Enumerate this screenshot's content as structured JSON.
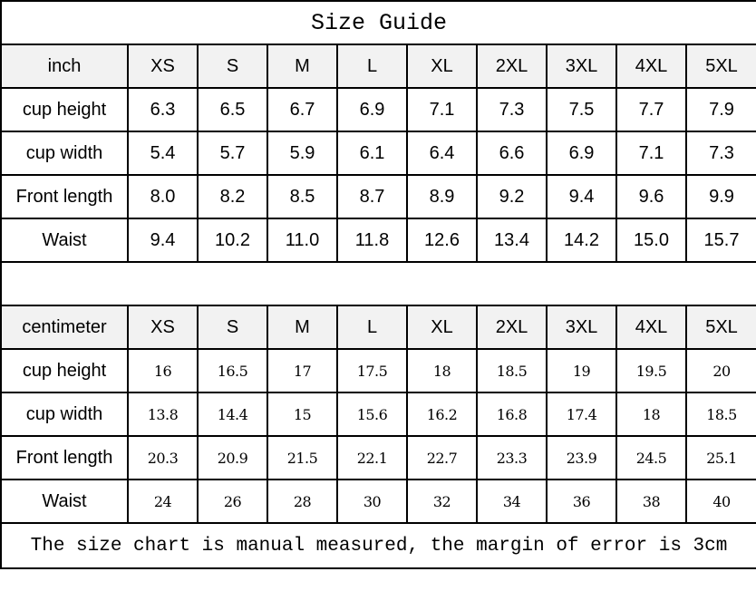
{
  "title": "Size Guide",
  "sizes": [
    "XS",
    "S",
    "M",
    "L",
    "XL",
    "2XL",
    "3XL",
    "4XL",
    "5XL"
  ],
  "inch": {
    "unit_label": "inch",
    "rows": [
      {
        "label": "cup height",
        "values": [
          "6.3",
          "6.5",
          "6.7",
          "6.9",
          "7.1",
          "7.3",
          "7.5",
          "7.7",
          "7.9"
        ]
      },
      {
        "label": "cup width",
        "values": [
          "5.4",
          "5.7",
          "5.9",
          "6.1",
          "6.4",
          "6.6",
          "6.9",
          "7.1",
          "7.3"
        ]
      },
      {
        "label": "Front length",
        "values": [
          "8.0",
          "8.2",
          "8.5",
          "8.7",
          "8.9",
          "9.2",
          "9.4",
          "9.6",
          "9.9"
        ]
      },
      {
        "label": "Waist",
        "values": [
          "9.4",
          "10.2",
          "11.0",
          "11.8",
          "12.6",
          "13.4",
          "14.2",
          "15.0",
          "15.7"
        ]
      }
    ]
  },
  "centimeter": {
    "unit_label": "centimeter",
    "rows": [
      {
        "label": "cup height",
        "values": [
          "16",
          "16.5",
          "17",
          "17.5",
          "18",
          "18.5",
          "19",
          "19.5",
          "20"
        ]
      },
      {
        "label": "cup width",
        "values": [
          "13.8",
          "14.4",
          "15",
          "15.6",
          "16.2",
          "16.8",
          "17.4",
          "18",
          "18.5"
        ]
      },
      {
        "label": "Front length",
        "values": [
          "20.3",
          "20.9",
          "21.5",
          "22.1",
          "22.7",
          "23.3",
          "23.9",
          "24.5",
          "25.1"
        ]
      },
      {
        "label": "Waist",
        "values": [
          "24",
          "26",
          "28",
          "30",
          "32",
          "34",
          "36",
          "38",
          "40"
        ]
      }
    ]
  },
  "footer_note": "The size chart is manual measured, the margin of error is 3cm",
  "colors": {
    "header_bg": "#f2f2f2",
    "border": "#000000"
  }
}
